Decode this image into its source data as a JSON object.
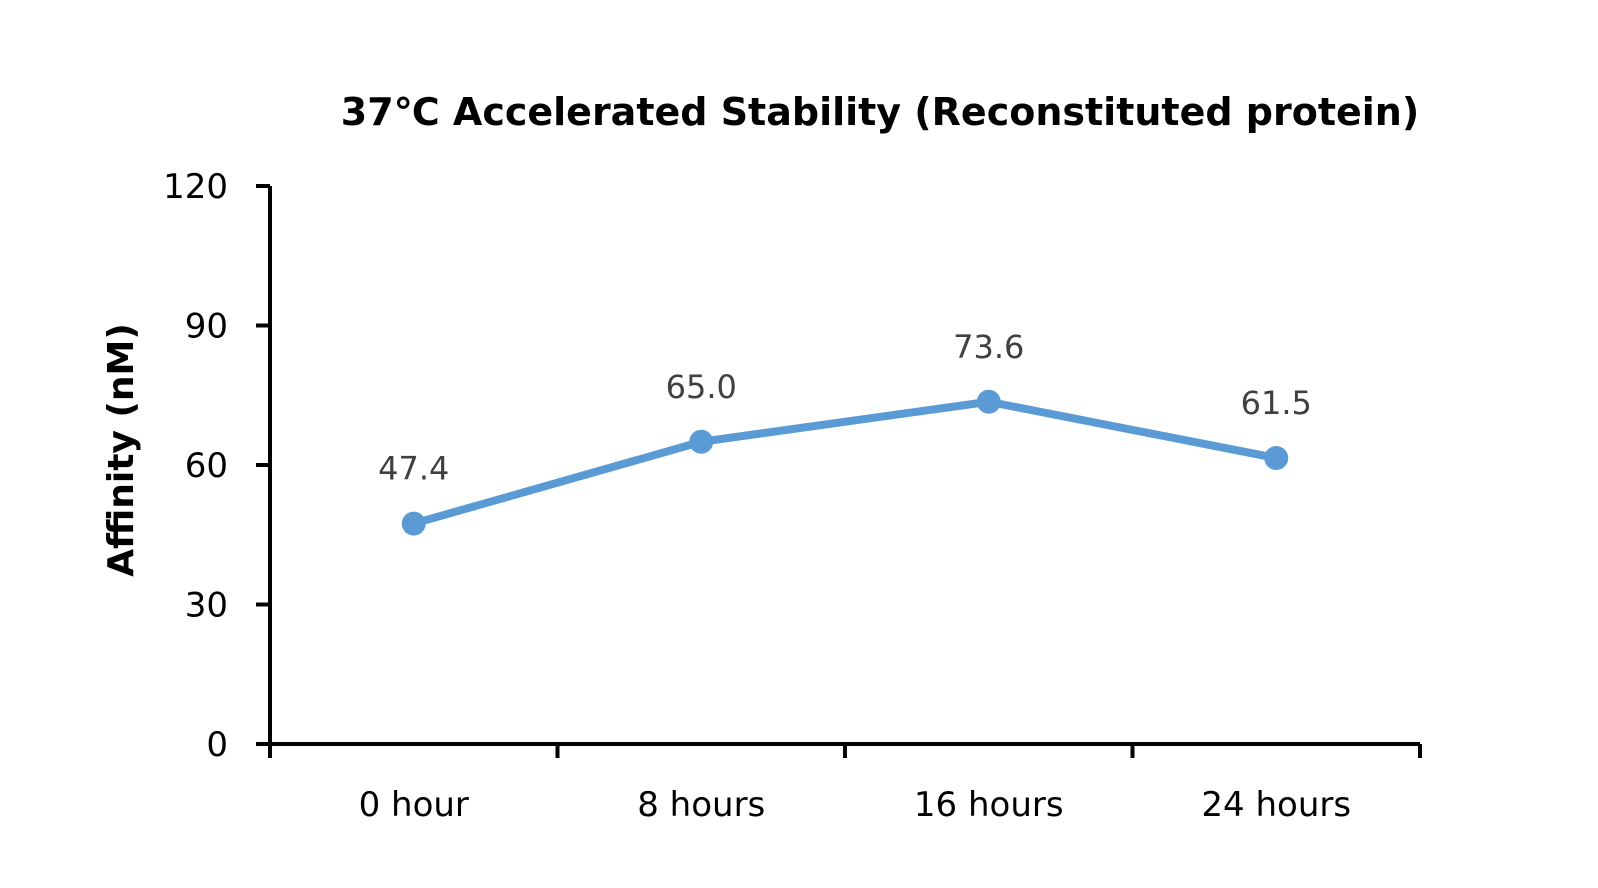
{
  "chart_data": {
    "type": "line",
    "title": "37℃ Accelerated Stability (Reconstituted protein)",
    "xlabel": "",
    "ylabel": "Affinity (nM)",
    "categories": [
      "0 hour",
      "8 hours",
      "16 hours",
      "24 hours"
    ],
    "series": [
      {
        "values": [
          47.4,
          65.0,
          73.6,
          61.5
        ],
        "data_labels": [
          "47.4",
          "65.0",
          "73.6",
          "61.5"
        ],
        "color": "#5B9BD5"
      }
    ],
    "ylim": [
      0,
      120
    ],
    "yticks": [
      0,
      30,
      60,
      90,
      120
    ],
    "ytick_labels": [
      "0",
      "30",
      "60",
      "90",
      "120"
    ],
    "grid": false,
    "legend": "none"
  }
}
